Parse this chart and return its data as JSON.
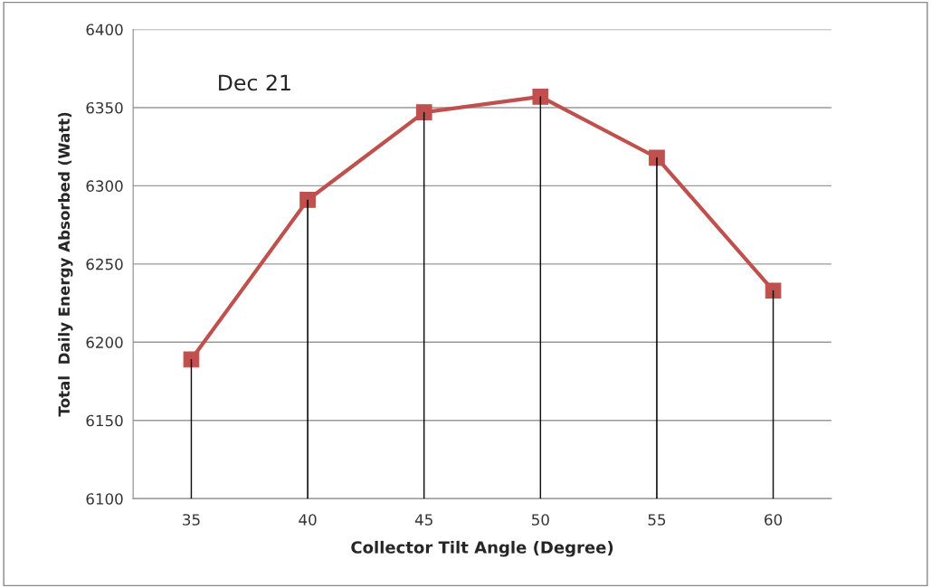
{
  "chart_data": {
    "type": "line",
    "categories": [
      "35",
      "40",
      "45",
      "50",
      "55",
      "60"
    ],
    "series": [
      {
        "type": "bar",
        "color": "#000000",
        "values": [
          6189,
          6291,
          6347,
          6357,
          6318,
          6233
        ]
      },
      {
        "color": "#c0504d",
        "values": [
          6189,
          6291,
          6347,
          6357,
          6318,
          6233
        ]
      }
    ],
    "xlabel": "Collector Tilt Angle (Degree)",
    "ylabel": "Total  Daily Energy Absorbed (Watt)",
    "annotations": [
      "Dec 21"
    ],
    "ylim": [
      6100,
      6400
    ],
    "yticks": [
      6100,
      6150,
      6200,
      6250,
      6300,
      6350,
      6400
    ],
    "grid": "y",
    "marker": "square",
    "line_style": "solid"
  }
}
